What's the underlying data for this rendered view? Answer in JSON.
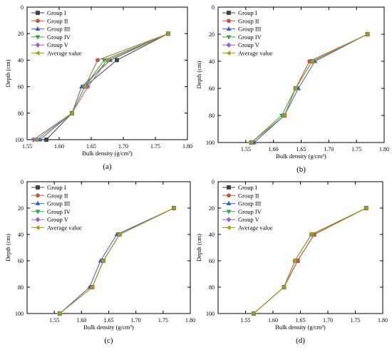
{
  "chart_data": [
    {
      "type": "line",
      "panel_label": "(a)",
      "xlabel": "Bulk density (g/cm³)",
      "ylabel": "Depth (cm)",
      "xlim": [
        1.55,
        1.8
      ],
      "ylim": [
        0,
        100
      ],
      "y_inverted": true,
      "x_ticks": [
        "1.55",
        "1.60",
        "1.65",
        "1.70",
        "1.75",
        "1.80"
      ],
      "y_ticks": [
        "0",
        "20",
        "40",
        "60",
        "80",
        "100"
      ],
      "legend_position": "top-left",
      "series": [
        {
          "name": "Group I",
          "color": "#404040",
          "marker": "square",
          "points": [
            [
              1.77,
              20
            ],
            [
              1.69,
              40
            ],
            [
              1.64,
              60
            ],
            [
              1.62,
              80
            ],
            [
              1.58,
              100
            ]
          ]
        },
        {
          "name": "Group II",
          "color": "#c4553a",
          "marker": "circle",
          "points": [
            [
              1.77,
              20
            ],
            [
              1.66,
              40
            ],
            [
              1.64,
              60
            ],
            [
              1.62,
              80
            ],
            [
              1.565,
              100
            ]
          ]
        },
        {
          "name": "Group III",
          "color": "#3a5fcd",
          "marker": "triangle-up",
          "points": [
            [
              1.77,
              20
            ],
            [
              1.68,
              40
            ],
            [
              1.635,
              60
            ],
            [
              1.62,
              80
            ],
            [
              1.57,
              100
            ]
          ]
        },
        {
          "name": "Group IV",
          "color": "#2fa64a",
          "marker": "triangle-down",
          "points": [
            [
              1.77,
              20
            ],
            [
              1.67,
              40
            ],
            [
              1.64,
              60
            ],
            [
              1.62,
              80
            ],
            [
              1.56,
              100
            ]
          ]
        },
        {
          "name": "Group V",
          "color": "#9b5cd6",
          "marker": "diamond",
          "points": [
            [
              1.77,
              20
            ],
            [
              1.675,
              40
            ],
            [
              1.645,
              60
            ],
            [
              1.62,
              80
            ],
            [
              1.56,
              100
            ]
          ]
        },
        {
          "name": "Average value",
          "color": "#a8a000",
          "marker": "triangle-left",
          "points": [
            [
              1.77,
              20
            ],
            [
              1.675,
              40
            ],
            [
              1.64,
              60
            ],
            [
              1.62,
              80
            ],
            [
              1.565,
              100
            ]
          ]
        }
      ]
    },
    {
      "type": "line",
      "panel_label": "(b)",
      "xlabel": "Bulk density (g/cm³)",
      "ylabel": "Depth (cm)",
      "xlim": [
        1.5,
        1.8
      ],
      "ylim": [
        0,
        100
      ],
      "y_inverted": true,
      "x_ticks": [
        "1.55",
        "1.60",
        "1.65",
        "1.70",
        "1.75",
        "1.80"
      ],
      "y_ticks": [
        "0",
        "20",
        "40",
        "60",
        "80",
        "100"
      ],
      "legend_position": "top-left",
      "series": [
        {
          "name": "Group I",
          "color": "#404040",
          "marker": "square",
          "points": [
            [
              1.77,
              20
            ],
            [
              1.67,
              40
            ],
            [
              1.64,
              60
            ],
            [
              1.62,
              80
            ],
            [
              1.56,
              100
            ]
          ]
        },
        {
          "name": "Group II",
          "color": "#c4553a",
          "marker": "circle",
          "points": [
            [
              1.77,
              20
            ],
            [
              1.665,
              40
            ],
            [
              1.64,
              60
            ],
            [
              1.62,
              80
            ],
            [
              1.565,
              100
            ]
          ]
        },
        {
          "name": "Group III",
          "color": "#3a5fcd",
          "marker": "triangle-up",
          "points": [
            [
              1.77,
              20
            ],
            [
              1.675,
              40
            ],
            [
              1.645,
              60
            ],
            [
              1.62,
              80
            ],
            [
              1.565,
              100
            ]
          ]
        },
        {
          "name": "Group IV",
          "color": "#2fa64a",
          "marker": "triangle-down",
          "points": [
            [
              1.77,
              20
            ],
            [
              1.67,
              40
            ],
            [
              1.64,
              60
            ],
            [
              1.615,
              80
            ],
            [
              1.56,
              100
            ]
          ]
        },
        {
          "name": "Group V",
          "color": "#9b5cd6",
          "marker": "diamond",
          "points": [
            [
              1.77,
              20
            ],
            [
              1.67,
              40
            ],
            [
              1.64,
              60
            ],
            [
              1.62,
              80
            ],
            [
              1.56,
              100
            ]
          ]
        },
        {
          "name": "Average value",
          "color": "#a8a000",
          "marker": "triangle-left",
          "points": [
            [
              1.77,
              20
            ],
            [
              1.67,
              40
            ],
            [
              1.64,
              60
            ],
            [
              1.62,
              80
            ],
            [
              1.56,
              100
            ]
          ]
        }
      ]
    },
    {
      "type": "line",
      "panel_label": "(c)",
      "xlabel": "Bulk density (g/cm³)",
      "ylabel": "Depth (cm)",
      "xlim": [
        1.5,
        1.8
      ],
      "ylim": [
        0,
        100
      ],
      "y_inverted": true,
      "x_ticks": [
        "1.55",
        "1.60",
        "1.65",
        "1.70",
        "1.75",
        "1.80"
      ],
      "y_ticks": [
        "0",
        "20",
        "40",
        "60",
        "80",
        "100"
      ],
      "legend_position": "top-left",
      "series": [
        {
          "name": "Group I",
          "color": "#404040",
          "marker": "square",
          "points": [
            [
              1.77,
              20
            ],
            [
              1.67,
              40
            ],
            [
              1.64,
              60
            ],
            [
              1.62,
              80
            ],
            [
              1.56,
              100
            ]
          ]
        },
        {
          "name": "Group II",
          "color": "#c4553a",
          "marker": "circle",
          "points": [
            [
              1.77,
              20
            ],
            [
              1.67,
              40
            ],
            [
              1.64,
              60
            ],
            [
              1.62,
              80
            ],
            [
              1.56,
              100
            ]
          ]
        },
        {
          "name": "Group III",
          "color": "#3a5fcd",
          "marker": "triangle-up",
          "points": [
            [
              1.77,
              20
            ],
            [
              1.665,
              40
            ],
            [
              1.635,
              60
            ],
            [
              1.615,
              80
            ],
            [
              1.56,
              100
            ]
          ]
        },
        {
          "name": "Group IV",
          "color": "#2fa64a",
          "marker": "triangle-down",
          "points": [
            [
              1.77,
              20
            ],
            [
              1.67,
              40
            ],
            [
              1.64,
              60
            ],
            [
              1.62,
              80
            ],
            [
              1.56,
              100
            ]
          ]
        },
        {
          "name": "Group V",
          "color": "#9b5cd6",
          "marker": "diamond",
          "points": [
            [
              1.77,
              20
            ],
            [
              1.67,
              40
            ],
            [
              1.64,
              60
            ],
            [
              1.62,
              80
            ],
            [
              1.56,
              100
            ]
          ]
        },
        {
          "name": "Average value",
          "color": "#a8a000",
          "marker": "triangle-left",
          "points": [
            [
              1.77,
              20
            ],
            [
              1.67,
              40
            ],
            [
              1.64,
              60
            ],
            [
              1.62,
              80
            ],
            [
              1.56,
              100
            ]
          ]
        }
      ]
    },
    {
      "type": "line",
      "panel_label": "(d)",
      "xlabel": "Bulk density (g/cm³)",
      "ylabel": "Depth (cm)",
      "xlim": [
        1.5,
        1.8
      ],
      "ylim": [
        0,
        100
      ],
      "y_inverted": true,
      "x_ticks": [
        "1.55",
        "1.60",
        "1.65",
        "1.70",
        "1.75",
        "1.80"
      ],
      "y_ticks": [
        "0",
        "20",
        "40",
        "60",
        "80",
        "100"
      ],
      "legend_position": "top-left",
      "series": [
        {
          "name": "Group I",
          "color": "#404040",
          "marker": "square",
          "points": [
            [
              1.77,
              20
            ],
            [
              1.675,
              40
            ],
            [
              1.645,
              60
            ],
            [
              1.62,
              80
            ],
            [
              1.565,
              100
            ]
          ]
        },
        {
          "name": "Group II",
          "color": "#c4553a",
          "marker": "circle",
          "points": [
            [
              1.77,
              20
            ],
            [
              1.675,
              40
            ],
            [
              1.645,
              60
            ],
            [
              1.62,
              80
            ],
            [
              1.565,
              100
            ]
          ]
        },
        {
          "name": "Group III",
          "color": "#3a5fcd",
          "marker": "triangle-up",
          "points": [
            [
              1.77,
              20
            ],
            [
              1.67,
              40
            ],
            [
              1.64,
              60
            ],
            [
              1.62,
              80
            ],
            [
              1.565,
              100
            ]
          ]
        },
        {
          "name": "Group IV",
          "color": "#2fa64a",
          "marker": "triangle-down",
          "points": [
            [
              1.77,
              20
            ],
            [
              1.67,
              40
            ],
            [
              1.64,
              60
            ],
            [
              1.62,
              80
            ],
            [
              1.565,
              100
            ]
          ]
        },
        {
          "name": "Group V",
          "color": "#9b5cd6",
          "marker": "diamond",
          "points": [
            [
              1.77,
              20
            ],
            [
              1.67,
              40
            ],
            [
              1.64,
              60
            ],
            [
              1.62,
              80
            ],
            [
              1.565,
              100
            ]
          ]
        },
        {
          "name": "Average value",
          "color": "#a8a000",
          "marker": "triangle-left",
          "points": [
            [
              1.77,
              20
            ],
            [
              1.67,
              40
            ],
            [
              1.64,
              60
            ],
            [
              1.62,
              80
            ],
            [
              1.565,
              100
            ]
          ]
        }
      ]
    }
  ]
}
